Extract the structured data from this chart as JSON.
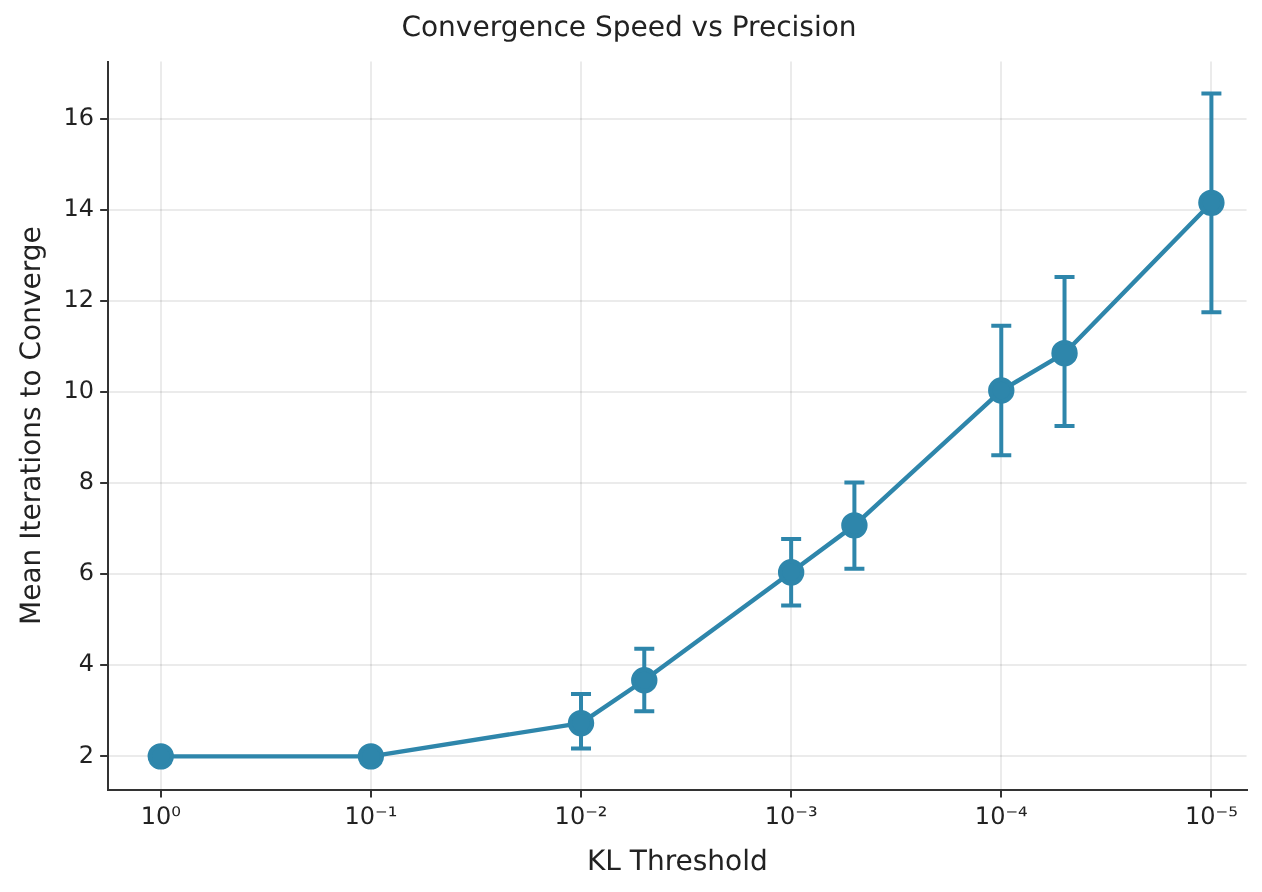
{
  "chart_data": {
    "type": "line",
    "title": "Convergence Speed vs Precision",
    "xlabel": "KL Threshold",
    "ylabel": "Mean Iterations to Converge",
    "log": "x",
    "x": [
      1,
      0.1,
      0.01,
      0.005,
      0.001,
      0.0005,
      0.0001,
      5e-05,
      1e-05
    ],
    "series": [
      {
        "color": "#2e86ab",
        "values": [
          2.0,
          2.0,
          2.73,
          3.67,
          6.04,
          7.07,
          10.03,
          10.85,
          14.15
        ],
        "errors": [
          null,
          null,
          [
            2.17,
            3.37
          ],
          [
            2.99,
            4.36
          ],
          [
            5.31,
            6.77
          ],
          [
            6.12,
            8.01
          ],
          [
            8.61,
            11.45
          ],
          [
            9.25,
            12.52
          ],
          [
            11.75,
            16.55
          ]
        ]
      }
    ],
    "xlim": [
      1.78,
      6.8e-06
    ],
    "ylim": [
      1.27,
      17.25
    ],
    "xticks": [
      {
        "value": 1,
        "label": "10⁰"
      },
      {
        "value": 0.1,
        "label": "10⁻¹"
      },
      {
        "value": 0.01,
        "label": "10⁻²"
      },
      {
        "value": 0.001,
        "label": "10⁻³"
      },
      {
        "value": 0.0001,
        "label": "10⁻⁴"
      },
      {
        "value": 1e-05,
        "label": "10⁻⁵"
      }
    ],
    "yticks": [
      2,
      4,
      6,
      8,
      10,
      12,
      14,
      16
    ],
    "grid": true,
    "legend": false,
    "marker": "circle",
    "line_style": "solid"
  }
}
